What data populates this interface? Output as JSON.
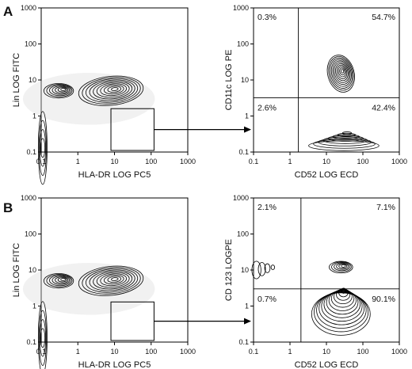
{
  "panels": [
    {
      "letter": "A"
    },
    {
      "letter": "B"
    }
  ],
  "chart_data": [
    {
      "type": "contour",
      "panel": "A",
      "xlabel": "HLA-DR LOG PC5",
      "ylabel": "Lin LOG FITC",
      "x_scale": "log",
      "y_scale": "log",
      "xlim": [
        0.1,
        1000
      ],
      "ylim": [
        0.1,
        1000
      ],
      "x_ticks": [
        "0.1",
        "1",
        "10",
        "100",
        "1000"
      ],
      "y_ticks": [
        "0.1",
        "1",
        "10",
        "100",
        "1000"
      ],
      "populations": [
        {
          "x": 0.3,
          "y": 5
        },
        {
          "x": 8,
          "y": 5
        },
        {
          "x": 0.11,
          "y": 0.13
        }
      ],
      "gate": {
        "x": [
          8,
          120
        ],
        "y": [
          0.1,
          1.6
        ]
      }
    },
    {
      "type": "contour",
      "panel": "A",
      "xlabel": "CD52 LOG ECD",
      "ylabel": "CD11c LOG PE",
      "x_scale": "log",
      "y_scale": "log",
      "xlim": [
        0.1,
        1000
      ],
      "ylim": [
        0.1,
        1000
      ],
      "x_ticks": [
        "0.1",
        "1",
        "10",
        "100",
        "1000"
      ],
      "y_ticks": [
        "0.1",
        "1",
        "10",
        "100",
        "1000"
      ],
      "quadrant_divider": {
        "x": 1.7,
        "y": 3.2
      },
      "quadrant_percentages": {
        "upper_left": "0.3%",
        "upper_right": "54.7%",
        "lower_left": "2.6%",
        "lower_right": "42.4%"
      },
      "populations": [
        {
          "x": 25,
          "y": 15
        },
        {
          "x": 30,
          "y": 0.15
        }
      ]
    },
    {
      "type": "contour",
      "panel": "B",
      "xlabel": "HLA-DR LOG PC5",
      "ylabel": "Lin LOG FITC",
      "x_scale": "log",
      "y_scale": "log",
      "xlim": [
        0.1,
        1000
      ],
      "ylim": [
        0.1,
        1000
      ],
      "x_ticks": [
        "0.1",
        "1",
        "10",
        "100",
        "1000"
      ],
      "y_ticks": [
        "0.1",
        "1",
        "10",
        "100",
        "1000"
      ],
      "populations": [
        {
          "x": 0.3,
          "y": 5
        },
        {
          "x": 8,
          "y": 5
        },
        {
          "x": 0.11,
          "y": 0.13
        }
      ],
      "gate": {
        "x": [
          8,
          120
        ],
        "y": [
          0.1,
          1.3
        ]
      }
    },
    {
      "type": "contour",
      "panel": "B",
      "xlabel": "CD52 LOG ECD",
      "ylabel": "CD 123 LOGPE",
      "x_scale": "log",
      "y_scale": "log",
      "xlim": [
        0.1,
        1000
      ],
      "ylim": [
        0.1,
        1000
      ],
      "x_ticks": [
        "0.1",
        "1",
        "10",
        "100",
        "1000"
      ],
      "y_ticks": [
        "0.1",
        "1",
        "10",
        "100",
        "1000"
      ],
      "quadrant_divider": {
        "x": 2,
        "y": 3
      },
      "quadrant_percentages": {
        "upper_left": "2.1%",
        "upper_right": "7.1%",
        "lower_left": "0.7%",
        "lower_right": "90.1%"
      },
      "populations": [
        {
          "x": 25,
          "y": 12
        },
        {
          "x": 0.12,
          "y": 10
        },
        {
          "x": 25,
          "y": 0.6
        }
      ]
    }
  ]
}
